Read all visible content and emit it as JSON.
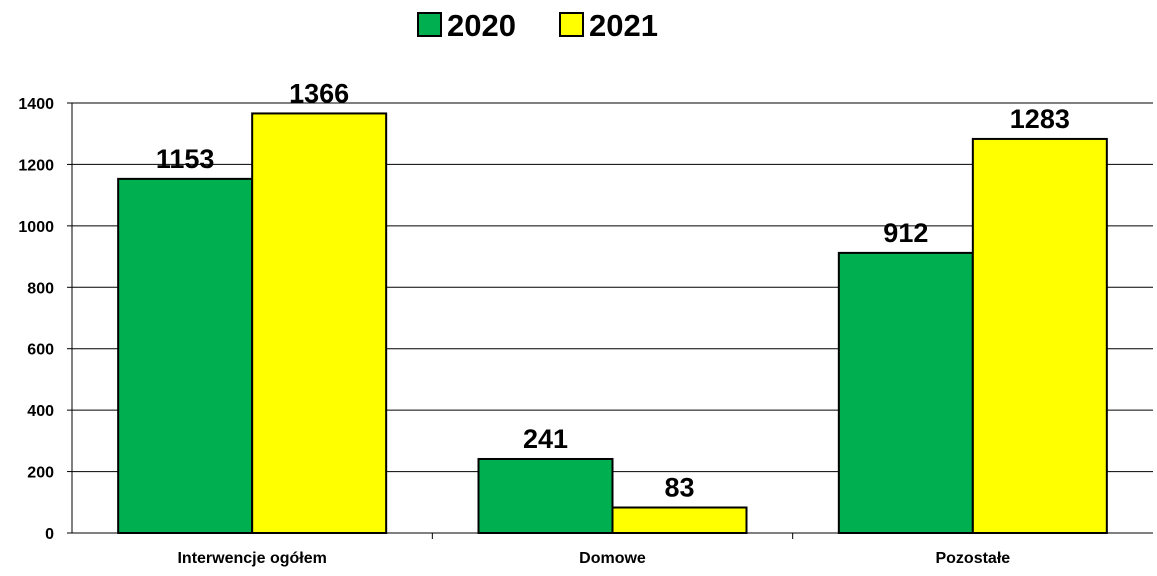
{
  "chart_data": {
    "type": "bar",
    "categories": [
      "Interwencje ogółem",
      "Domowe",
      "Pozostałe"
    ],
    "series": [
      {
        "name": "2020",
        "values": [
          1153,
          241,
          912
        ],
        "color": "#00B050"
      },
      {
        "name": "2021",
        "values": [
          1366,
          83,
          1283
        ],
        "color": "#FFFF00"
      }
    ],
    "y_ticks": [
      "0",
      "200",
      "400",
      "600",
      "800",
      "1000",
      "1200",
      "1400"
    ],
    "ylim": [
      0,
      1400
    ],
    "grid": true,
    "legend_position": "top-center",
    "data_labels": true
  }
}
